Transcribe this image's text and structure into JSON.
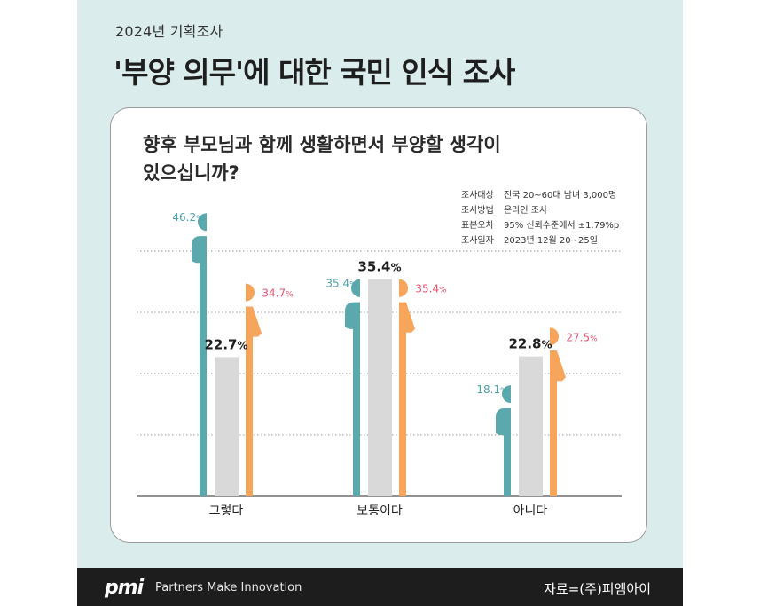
{
  "header": {
    "kicker": "2024년 기획조사",
    "title": "'부양 의무'에 대한 국민 인식 조사"
  },
  "card": {
    "question_line1": "향후 부모님과 함께 생활하면서 부양할 생각이",
    "question_line2": "있으십니까?",
    "method": [
      {
        "key": "조사대상",
        "value": "전국 20~60대 남녀 3,000명"
      },
      {
        "key": "조사방법",
        "value": "온라인 조사"
      },
      {
        "key": "표본오차",
        "value": "95% 신뢰수준에서 ±1.79%p"
      },
      {
        "key": "조사일자",
        "value": "2023년 12월 20~25일"
      }
    ]
  },
  "chart_data": {
    "type": "bar",
    "categories": [
      "그렇다",
      "보통이다",
      "아니다"
    ],
    "series": [
      {
        "values": [
          46.2,
          35.4,
          18.1
        ],
        "color": "#5ba8ad",
        "icon": "male-figure-icon"
      },
      {
        "values": [
          22.7,
          35.4,
          22.8
        ],
        "color": "#d9d9d9"
      },
      {
        "values": [
          34.7,
          35.4,
          27.5
        ],
        "color": "#f7a55a",
        "icon": "female-figure-icon"
      }
    ],
    "ylim": [
      0,
      50
    ],
    "grid": true,
    "label_colors": [
      "#4ea3aa",
      "#1e1e1e",
      "#e8546f"
    ]
  },
  "footer": {
    "logo": "pmi",
    "tagline": "Partners Make Innovation",
    "source": "자료=(주)피앰아이"
  }
}
